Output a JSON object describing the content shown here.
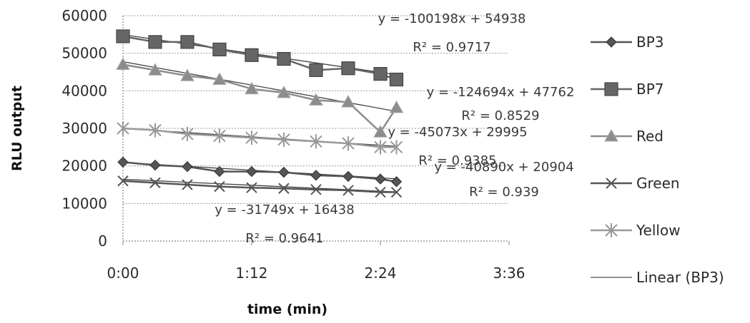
{
  "chart_data": {
    "type": "line",
    "title": "",
    "xlabel": "time (min)",
    "ylabel": "RLU output",
    "x_ticks": [
      "0:00",
      "1:12",
      "2:24",
      "3:36"
    ],
    "x_range_minutes": [
      0,
      216
    ],
    "y_ticks": [
      "0",
      "10000",
      "20000",
      "30000",
      "40000",
      "50000",
      "60000"
    ],
    "ylim": [
      0,
      60000
    ],
    "grid": true,
    "legend_position": "right",
    "series": [
      {
        "name": "BP3",
        "color": "#555555",
        "marker": "diamond",
        "x": [
          0,
          18,
          36,
          54,
          72,
          90,
          108,
          126,
          144,
          153
        ],
        "values": [
          21000,
          20200,
          19800,
          18500,
          18500,
          18300,
          17500,
          17200,
          16500,
          15800
        ]
      },
      {
        "name": "BP7",
        "color": "#666666",
        "marker": "square",
        "x": [
          0,
          18,
          36,
          54,
          72,
          90,
          108,
          126,
          144,
          153
        ],
        "values": [
          54500,
          53000,
          53000,
          51000,
          49500,
          48500,
          45500,
          46000,
          44500,
          43000
        ]
      },
      {
        "name": "Red",
        "color": "#8c8c8c",
        "marker": "triangle",
        "x": [
          0,
          18,
          36,
          54,
          72,
          90,
          108,
          126,
          144,
          153
        ],
        "values": [
          47000,
          45500,
          44000,
          43000,
          40500,
          39500,
          37500,
          37000,
          29000,
          35500
        ]
      },
      {
        "name": "Green",
        "color": "#555555",
        "marker": "x",
        "x": [
          0,
          18,
          36,
          54,
          72,
          90,
          108,
          126,
          144,
          153
        ],
        "values": [
          16000,
          15500,
          15000,
          14500,
          14200,
          14000,
          13700,
          13500,
          13000,
          13000
        ]
      },
      {
        "name": "Yellow",
        "color": "#999999",
        "marker": "star",
        "x": [
          0,
          18,
          36,
          54,
          72,
          90,
          108,
          126,
          144,
          153
        ],
        "values": [
          30000,
          29500,
          28500,
          28000,
          27500,
          27000,
          26500,
          26000,
          25000,
          25000
        ]
      }
    ],
    "trendlines": [
      {
        "series": "BP3",
        "equation": "y = -40890x + 20904",
        "r2": "R² = 0.939",
        "slope": -40890,
        "intercept": 20904
      },
      {
        "series": "BP7",
        "equation": "y = -100198x + 54938",
        "r2": "R² = 0.9717",
        "slope": -100198,
        "intercept": 54938
      },
      {
        "series": "Red",
        "equation": "y = -124694x + 47762",
        "r2": "R² = 0.8529",
        "slope": -124694,
        "intercept": 47762
      },
      {
        "series": "Green",
        "equation": "y = -31749x + 16438",
        "r2": "R² = 0.9641",
        "slope": -31749,
        "intercept": 16438
      },
      {
        "series": "Yellow",
        "equation": "y = -45073x + 29995",
        "r2": "R² = 0.9385",
        "slope": -45073,
        "intercept": 29995
      }
    ],
    "legend": [
      {
        "label": "BP3",
        "marker": "diamond",
        "color": "#555555"
      },
      {
        "label": "BP7",
        "marker": "square",
        "color": "#666666"
      },
      {
        "label": "Red",
        "marker": "triangle",
        "color": "#8c8c8c"
      },
      {
        "label": "Green",
        "marker": "x",
        "color": "#555555"
      },
      {
        "label": "Yellow",
        "marker": "star",
        "color": "#999999"
      },
      {
        "label": "Linear (BP3)",
        "marker": "none",
        "color": "#555555"
      }
    ]
  }
}
